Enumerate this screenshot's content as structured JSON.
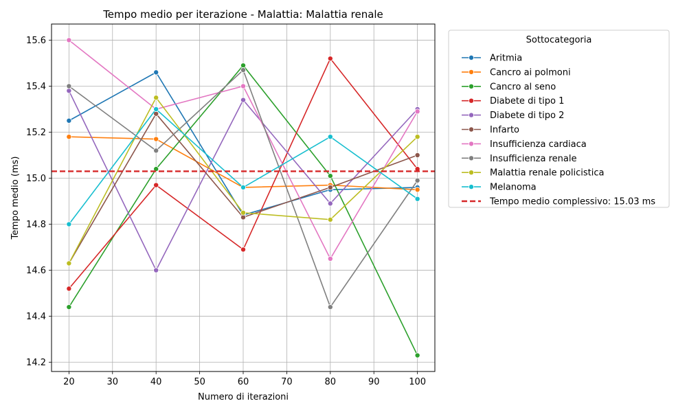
{
  "chart_data": {
    "type": "line",
    "title": "Tempo medio per iterazione - Malattia: Malattia renale",
    "xlabel": "Numero di iterazioni",
    "ylabel": "Tempo medio (ms)",
    "x": [
      20,
      40,
      60,
      80,
      100
    ],
    "xlim": [
      16,
      104
    ],
    "ylim": [
      14.16,
      15.67
    ],
    "xticks": [
      20,
      30,
      40,
      50,
      60,
      70,
      80,
      90,
      100
    ],
    "yticks": [
      14.2,
      14.4,
      14.6,
      14.8,
      15.0,
      15.2,
      15.4,
      15.6
    ],
    "grid": true,
    "legend_title": "Sottocategoria",
    "legend_position": "outside-right",
    "series": [
      {
        "name": "Aritmia",
        "color": "#1f77b4",
        "values": [
          15.25,
          15.46,
          14.84,
          14.95,
          14.96
        ]
      },
      {
        "name": "Cancro ai polmoni",
        "color": "#ff7f0e",
        "values": [
          15.18,
          15.17,
          14.96,
          14.97,
          14.95
        ]
      },
      {
        "name": "Cancro al seno",
        "color": "#2ca02c",
        "values": [
          14.44,
          15.04,
          15.49,
          15.01,
          14.23
        ]
      },
      {
        "name": "Diabete di tipo 1",
        "color": "#d62728",
        "values": [
          14.52,
          14.97,
          14.69,
          15.52,
          15.04
        ]
      },
      {
        "name": "Diabete di tipo 2",
        "color": "#9467bd",
        "values": [
          15.38,
          14.6,
          15.34,
          14.89,
          15.3
        ]
      },
      {
        "name": "Infarto",
        "color": "#8c564b",
        "values": [
          14.63,
          15.28,
          14.83,
          14.96,
          15.1
        ]
      },
      {
        "name": "Insufficienza cardiaca",
        "color": "#e377c2",
        "values": [
          15.6,
          15.3,
          15.4,
          14.65,
          15.29
        ]
      },
      {
        "name": "Insufficienza renale",
        "color": "#7f7f7f",
        "values": [
          15.4,
          15.12,
          15.47,
          14.44,
          14.99
        ]
      },
      {
        "name": "Malattia renale policistica",
        "color": "#bcbd22",
        "values": [
          14.63,
          15.35,
          14.85,
          14.82,
          15.18
        ]
      },
      {
        "name": "Melanoma",
        "color": "#17becf",
        "values": [
          14.8,
          15.3,
          14.96,
          15.18,
          14.91
        ]
      }
    ],
    "reference_line": {
      "label": "Tempo medio complessivo: 15.03 ms",
      "value": 15.03,
      "color": "#d62728",
      "style": "dashed"
    }
  }
}
